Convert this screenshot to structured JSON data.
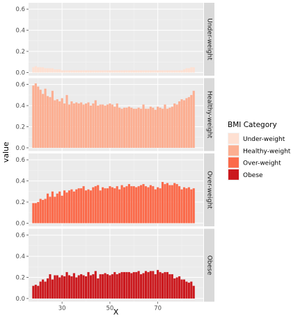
{
  "chart_data": {
    "type": "bar",
    "xlabel": "X",
    "ylabel": "value",
    "x_ticks": [
      30,
      50,
      70
    ],
    "y_ticks": [
      "0.0",
      "0.2",
      "0.4",
      "0.6"
    ],
    "xlim": [
      16,
      89
    ],
    "ylim": [
      -0.03,
      0.66
    ],
    "x": [
      18,
      19,
      20,
      21,
      22,
      23,
      24,
      25,
      26,
      27,
      28,
      29,
      30,
      31,
      32,
      33,
      34,
      35,
      36,
      37,
      38,
      39,
      40,
      41,
      42,
      43,
      44,
      45,
      46,
      47,
      48,
      49,
      50,
      51,
      52,
      53,
      54,
      55,
      56,
      57,
      58,
      59,
      60,
      61,
      62,
      63,
      64,
      65,
      66,
      67,
      68,
      69,
      70,
      71,
      72,
      73,
      74,
      75,
      76,
      77,
      78,
      79,
      80,
      81,
      82,
      83,
      84,
      85
    ],
    "legend": {
      "title": "BMI Category",
      "position": "right",
      "entries": [
        "Under-weight",
        "Healthy-weight",
        "Over-weight",
        "Obese"
      ]
    },
    "series": [
      {
        "name": "Under-weight",
        "color": "#fee0d2",
        "values": [
          0.05,
          0.06,
          0.05,
          0.05,
          0.05,
          0.04,
          0.04,
          0.04,
          0.04,
          0.03,
          0.03,
          0.03,
          0.02,
          0.02,
          0.02,
          0.02,
          0.02,
          0.02,
          0.02,
          0.02,
          0.02,
          0.02,
          0.02,
          0.02,
          0.02,
          0.02,
          0.02,
          0.02,
          0.02,
          0.02,
          0.02,
          0.02,
          0.02,
          0.02,
          0.02,
          0.02,
          0.02,
          0.02,
          0.02,
          0.02,
          0.02,
          0.02,
          0.02,
          0.02,
          0.02,
          0.02,
          0.02,
          0.02,
          0.02,
          0.02,
          0.02,
          0.02,
          0.02,
          0.02,
          0.02,
          0.02,
          0.02,
          0.02,
          0.02,
          0.02,
          0.02,
          0.02,
          0.02,
          0.03,
          0.04,
          0.04,
          0.05,
          0.05
        ]
      },
      {
        "name": "Healthy-weight",
        "color": "#fcae91",
        "values": [
          0.59,
          0.61,
          0.58,
          0.55,
          0.51,
          0.56,
          0.49,
          0.48,
          0.54,
          0.45,
          0.46,
          0.44,
          0.47,
          0.42,
          0.5,
          0.41,
          0.44,
          0.42,
          0.43,
          0.42,
          0.43,
          0.41,
          0.42,
          0.43,
          0.4,
          0.42,
          0.45,
          0.4,
          0.41,
          0.41,
          0.4,
          0.41,
          0.42,
          0.41,
          0.39,
          0.42,
          0.38,
          0.37,
          0.38,
          0.38,
          0.39,
          0.38,
          0.37,
          0.37,
          0.38,
          0.37,
          0.41,
          0.37,
          0.37,
          0.39,
          0.38,
          0.36,
          0.39,
          0.38,
          0.37,
          0.41,
          0.37,
          0.38,
          0.39,
          0.42,
          0.41,
          0.44,
          0.46,
          0.45,
          0.47,
          0.48,
          0.5,
          0.54
        ]
      },
      {
        "name": "Over-weight",
        "color": "#fb6a4a",
        "values": [
          0.19,
          0.19,
          0.2,
          0.23,
          0.22,
          0.23,
          0.28,
          0.25,
          0.3,
          0.25,
          0.28,
          0.3,
          0.26,
          0.31,
          0.29,
          0.31,
          0.32,
          0.3,
          0.32,
          0.33,
          0.33,
          0.35,
          0.31,
          0.32,
          0.31,
          0.34,
          0.35,
          0.36,
          0.31,
          0.34,
          0.33,
          0.33,
          0.35,
          0.34,
          0.33,
          0.35,
          0.32,
          0.36,
          0.34,
          0.35,
          0.37,
          0.35,
          0.35,
          0.34,
          0.35,
          0.36,
          0.37,
          0.35,
          0.34,
          0.36,
          0.35,
          0.32,
          0.34,
          0.33,
          0.39,
          0.37,
          0.38,
          0.36,
          0.36,
          0.38,
          0.37,
          0.35,
          0.32,
          0.34,
          0.33,
          0.34,
          0.32,
          0.33
        ]
      },
      {
        "name": "Obese",
        "color": "#cb181d",
        "values": [
          0.12,
          0.13,
          0.12,
          0.16,
          0.18,
          0.16,
          0.19,
          0.23,
          0.18,
          0.22,
          0.22,
          0.2,
          0.22,
          0.21,
          0.25,
          0.22,
          0.21,
          0.24,
          0.2,
          0.22,
          0.23,
          0.22,
          0.21,
          0.25,
          0.22,
          0.23,
          0.26,
          0.19,
          0.23,
          0.23,
          0.24,
          0.23,
          0.22,
          0.23,
          0.25,
          0.23,
          0.24,
          0.25,
          0.25,
          0.25,
          0.25,
          0.24,
          0.25,
          0.25,
          0.26,
          0.23,
          0.24,
          0.26,
          0.25,
          0.26,
          0.26,
          0.23,
          0.27,
          0.25,
          0.24,
          0.25,
          0.25,
          0.23,
          0.23,
          0.19,
          0.2,
          0.21,
          0.18,
          0.18,
          0.16,
          0.15,
          0.16,
          0.12
        ]
      }
    ]
  }
}
